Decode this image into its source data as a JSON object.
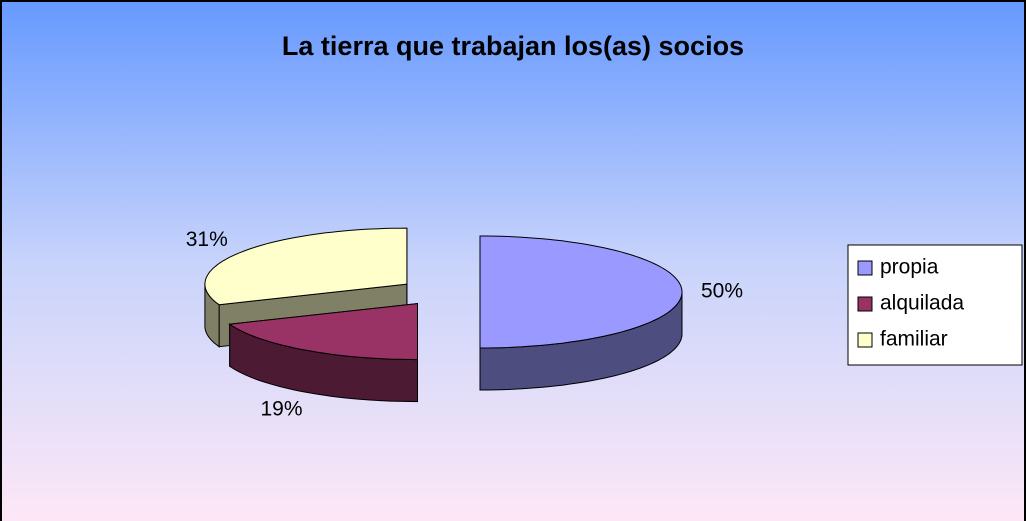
{
  "chart_data": {
    "type": "pie3d",
    "title": "La tierra que trabajan los(as) socios",
    "categories": [
      "propia",
      "alquilada",
      "familiar"
    ],
    "values": [
      50,
      19,
      31
    ],
    "value_labels": [
      "50%",
      "19%",
      "31%"
    ],
    "colors": [
      "#9999ff",
      "#993366",
      "#ffffcc"
    ],
    "legend": "right"
  }
}
